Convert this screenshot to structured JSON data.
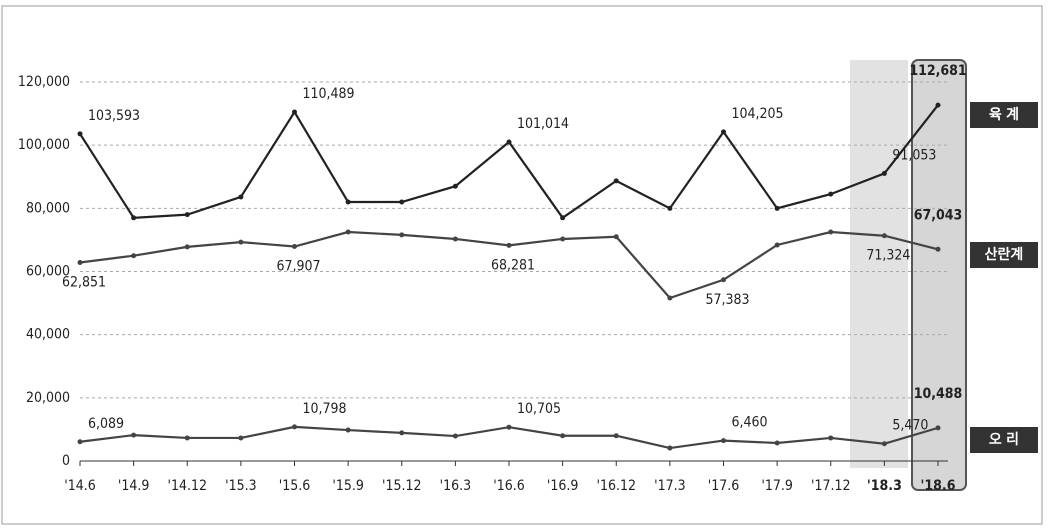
{
  "chart_data": {
    "type": "line",
    "categories": [
      "'14.6",
      "'14.9",
      "'14.12",
      "'15.3",
      "'15.6",
      "'15.9",
      "'15.12",
      "'16.3",
      "'16.6",
      "'16.9",
      "'16.12",
      "'17.3",
      "'17.6",
      "'17.9",
      "'17.12",
      "'18.3",
      "'18.6"
    ],
    "series": [
      {
        "name": "육 계",
        "color": "#222222",
        "values": [
          103593,
          77000,
          78000,
          83600,
          110489,
          82000,
          82000,
          87000,
          101014,
          77000,
          88700,
          80000,
          104205,
          80000,
          84500,
          91053,
          112681
        ],
        "value_labels": [
          "103,593",
          null,
          null,
          null,
          "110,489",
          null,
          null,
          null,
          "101,014",
          null,
          null,
          null,
          "104,205",
          null,
          null,
          "91,053",
          "112,681"
        ]
      },
      {
        "name": "산란계",
        "color": "#444444",
        "values": [
          62851,
          65000,
          67800,
          69300,
          67907,
          72500,
          71600,
          70300,
          68281,
          70300,
          71000,
          51600,
          57383,
          68400,
          72500,
          71324,
          67043
        ],
        "value_labels": [
          "62,851",
          null,
          null,
          null,
          "67,907",
          null,
          null,
          null,
          "68,281",
          null,
          null,
          null,
          "57,383",
          null,
          null,
          "71,324",
          "67,043"
        ]
      },
      {
        "name": "오 리",
        "color": "#444444",
        "values": [
          6089,
          8200,
          7300,
          7300,
          10798,
          9800,
          8900,
          7900,
          10705,
          8000,
          8000,
          4100,
          6460,
          5700,
          7300,
          5470,
          10488
        ],
        "value_labels": [
          "6,089",
          null,
          null,
          null,
          "10,798",
          null,
          null,
          null,
          "10,705",
          null,
          null,
          null,
          "6,460",
          null,
          null,
          "5,470",
          "10,488"
        ]
      }
    ],
    "ylim": [
      0,
      120000
    ],
    "yticks": [
      0,
      {
        "value": 20000,
        "label": "20,000"
      },
      {
        "value": 40000,
        "label": "40,000"
      },
      {
        "value": 60000,
        "label": "60,000"
      },
      {
        "value": 80000,
        "label": "80,000"
      },
      {
        "value": 100000,
        "label": "100,000"
      },
      {
        "value": 120000,
        "label": "120,000"
      }
    ],
    "grid": true
  }
}
